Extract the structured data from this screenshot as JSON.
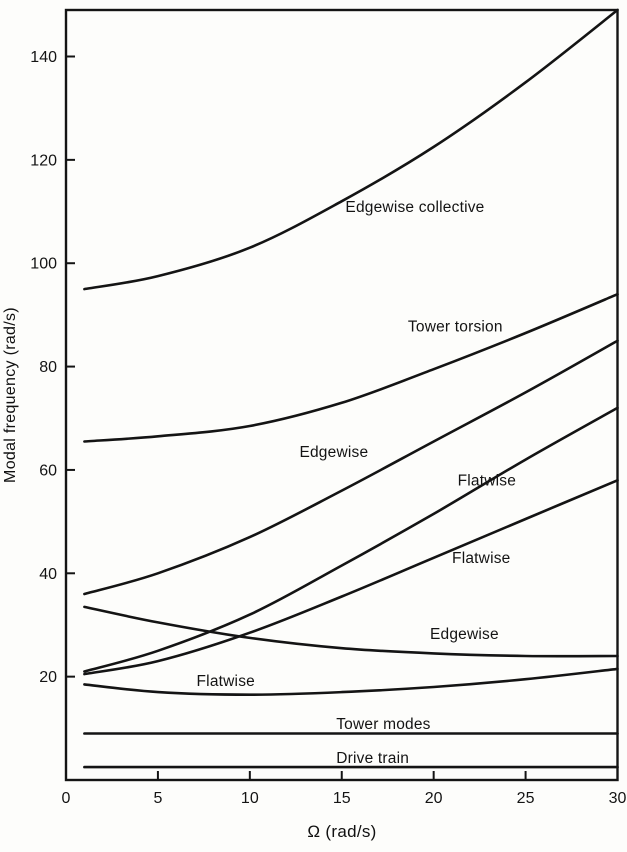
{
  "page": {
    "background": "#fdfdfb",
    "ink": "#141414"
  },
  "chart_data": {
    "type": "line",
    "title": "",
    "xlabel": "Ω (rad/s)",
    "ylabel": "Modal frequency (rad/s)",
    "xlim": [
      0,
      30
    ],
    "ylim": [
      0,
      149
    ],
    "x_ticks": [
      0,
      5,
      10,
      15,
      20,
      25,
      30
    ],
    "y_ticks": [
      20,
      40,
      60,
      80,
      100,
      120,
      140
    ],
    "grid": false,
    "legend": "inline-labels",
    "line_color": "#141414",
    "x": [
      1,
      5,
      10,
      15,
      20,
      25,
      30
    ],
    "series": [
      {
        "name": "Edgewise collective",
        "values": [
          95,
          97.5,
          103,
          112,
          122.5,
          135,
          149
        ]
      },
      {
        "name": "Tower torsion",
        "values": [
          65.5,
          66.5,
          68.5,
          73,
          79.5,
          86.5,
          94
        ]
      },
      {
        "name": "Edgewise (rising)",
        "values": [
          36,
          40,
          47,
          56,
          65.5,
          75,
          85
        ]
      },
      {
        "name": "Flatwise (upper)",
        "values": [
          21,
          25,
          32,
          41.5,
          51.5,
          62,
          72
        ]
      },
      {
        "name": "Flatwise (middle)",
        "values": [
          20.5,
          23,
          28.5,
          35.5,
          43,
          50.5,
          58
        ]
      },
      {
        "name": "Edgewise (falling)",
        "values": [
          33.5,
          30.5,
          27.5,
          25.5,
          24.5,
          24,
          24
        ]
      },
      {
        "name": "Flatwise (lower)",
        "values": [
          18.5,
          17,
          16.5,
          17,
          18,
          19.5,
          21.5
        ]
      },
      {
        "name": "Tower modes",
        "values": [
          9,
          9,
          9,
          9,
          9,
          9,
          9
        ]
      },
      {
        "name": "Drive train",
        "values": [
          2.5,
          2.5,
          2.5,
          2.5,
          2.5,
          2.5,
          2.5
        ]
      }
    ],
    "annotations": [
      {
        "text": "Edgewise collective",
        "x": 15.2,
        "y": 110.9
      },
      {
        "text": "Tower torsion",
        "x": 18.6,
        "y": 87.8
      },
      {
        "text": "Edgewise",
        "x": 12.7,
        "y": 63.5
      },
      {
        "text": "Flatwise",
        "x": 21.3,
        "y": 58.0
      },
      {
        "text": "Flatwise",
        "x": 21.0,
        "y": 43.0
      },
      {
        "text": "Edgewise",
        "x": 19.8,
        "y": 28.3
      },
      {
        "text": "Flatwise",
        "x": 7.1,
        "y": 19.2
      },
      {
        "text": "Tower modes",
        "x": 14.7,
        "y": 10.8
      },
      {
        "text": "Drive train",
        "x": 14.7,
        "y": 4.3
      }
    ]
  }
}
